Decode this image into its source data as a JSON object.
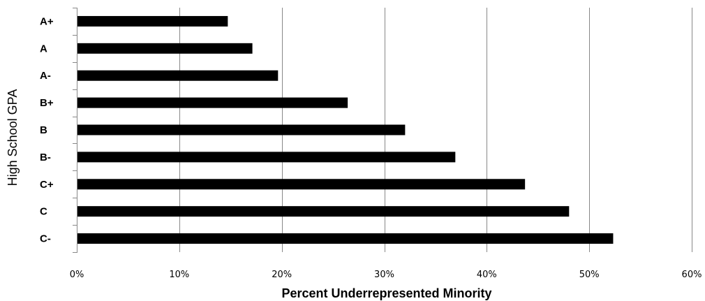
{
  "chart_data": {
    "type": "bar",
    "orientation": "horizontal",
    "title": "",
    "xlabel": "Percent Underrepresented Minority",
    "ylabel": "High School GPA",
    "categories": [
      "A+",
      "A",
      "A-",
      "B+",
      "B",
      "B-",
      "C+",
      "C",
      "C-"
    ],
    "values": [
      14.7,
      17.1,
      19.6,
      26.4,
      32.0,
      36.9,
      43.7,
      48.0,
      52.3
    ],
    "xlim": [
      0,
      60
    ],
    "xticks": [
      0,
      10,
      20,
      30,
      40,
      50,
      60
    ],
    "xtick_labels": [
      "0%",
      "10%",
      "20%",
      "30%",
      "40%",
      "50%",
      "60%"
    ],
    "grid": true,
    "legend": "none",
    "bar_color": "#000000",
    "grid_color": "#888888"
  }
}
